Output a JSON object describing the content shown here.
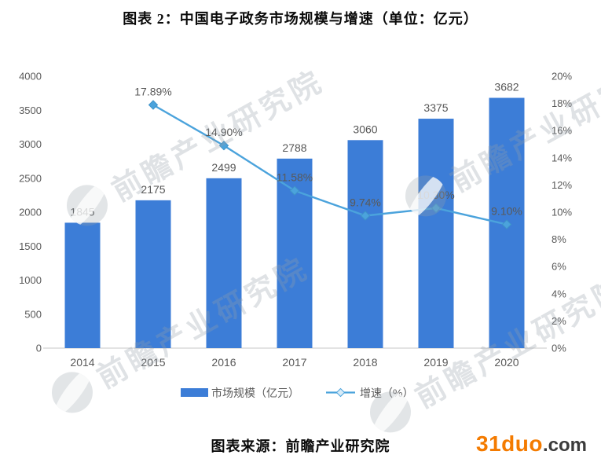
{
  "title": "图表 2：中国电子政务市场规模与增速（单位：亿元）",
  "chart_data": {
    "type": "bar",
    "subtype": "combo-bar-line",
    "title": "图表 2：中国电子政务市场规模与增速（单位：亿元）",
    "categories": [
      "2014",
      "2015",
      "2016",
      "2017",
      "2018",
      "2019",
      "2020"
    ],
    "series": [
      {
        "name": "市场规模（亿元）",
        "type": "bar",
        "axis": "left",
        "color": "#3C7DD7",
        "values": [
          1845,
          2175,
          2499,
          2788,
          3060,
          3375,
          3682
        ],
        "labels": [
          "1845",
          "2175",
          "2499",
          "2788",
          "3060",
          "3375",
          "3682"
        ]
      },
      {
        "name": "增速（%）",
        "type": "line",
        "axis": "right",
        "color": "#4BA3DC",
        "values": [
          null,
          17.89,
          14.9,
          11.58,
          9.74,
          10.3,
          9.1
        ],
        "labels": [
          "",
          "17.89%",
          "14.90%",
          "11.58%",
          "9.74%",
          "10.30%",
          "9.10%"
        ]
      }
    ],
    "left_axis": {
      "min": 0,
      "max": 4000,
      "step": 500,
      "tick_labels": [
        "0",
        "500",
        "1000",
        "1500",
        "2000",
        "2500",
        "3000",
        "3500",
        "4000"
      ]
    },
    "right_axis": {
      "min": 0,
      "max": 20,
      "step": 2,
      "tick_labels": [
        "0%",
        "2%",
        "4%",
        "6%",
        "8%",
        "10%",
        "12%",
        "14%",
        "16%",
        "18%",
        "20%"
      ]
    },
    "legend": {
      "position": "bottom",
      "items": [
        "市场规模（亿元）",
        "增速（%）"
      ]
    },
    "grid": false,
    "axis_text_color": "#595959",
    "label_text_color": "#565656"
  },
  "watermark": {
    "text": "前瞻产业研究院"
  },
  "footer": {
    "source": "图表来源：前瞻产业研究院",
    "logo_main": "31duo",
    "logo_suffix": ".com"
  }
}
